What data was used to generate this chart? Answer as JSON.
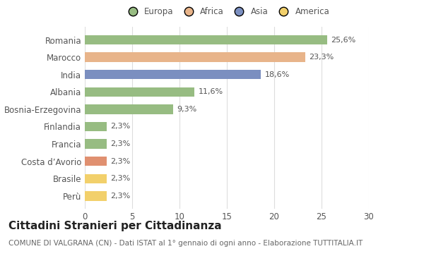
{
  "categories": [
    "Perù",
    "Brasile",
    "Costa d’Avorio",
    "Francia",
    "Finlandia",
    "Bosnia-Erzegovina",
    "Albania",
    "India",
    "Marocco",
    "Romania"
  ],
  "values": [
    2.3,
    2.3,
    2.3,
    2.3,
    2.3,
    9.3,
    11.6,
    18.6,
    23.3,
    25.6
  ],
  "labels": [
    "2,3%",
    "2,3%",
    "2,3%",
    "2,3%",
    "2,3%",
    "9,3%",
    "11,6%",
    "18,6%",
    "23,3%",
    "25,6%"
  ],
  "colors": [
    "#f2d06b",
    "#f2d06b",
    "#e09070",
    "#97bc82",
    "#97bc82",
    "#97bc82",
    "#97bc82",
    "#7b8fc0",
    "#e8b48a",
    "#97bc82"
  ],
  "legend_labels": [
    "Europa",
    "Africa",
    "Asia",
    "America"
  ],
  "legend_colors": [
    "#97bc82",
    "#e8b48a",
    "#7b8fc0",
    "#f2d06b"
  ],
  "title": "Cittadini Stranieri per Cittadinanza",
  "subtitle": "COMUNE DI VALGRANA (CN) - Dati ISTAT al 1° gennaio di ogni anno - Elaborazione TUTTITALIA.IT",
  "xlim": [
    0,
    30
  ],
  "xticks": [
    0,
    5,
    10,
    15,
    20,
    25,
    30
  ],
  "background_color": "#ffffff",
  "bar_height": 0.55,
  "label_fontsize": 8,
  "title_fontsize": 11,
  "subtitle_fontsize": 7.5,
  "tick_fontsize": 8.5,
  "legend_fontsize": 8.5,
  "grid_color": "#dddddd"
}
